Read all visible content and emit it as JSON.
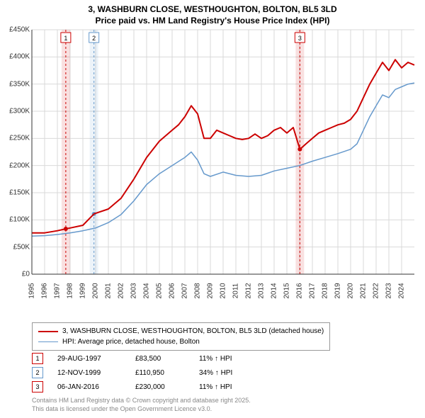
{
  "title_line1": "3, WASHBURN CLOSE, WESTHOUGHTON, BOLTON, BL5 3LD",
  "title_line2": "Price paid vs. HM Land Registry's House Price Index (HPI)",
  "chart": {
    "type": "line",
    "background_color": "#ffffff",
    "grid_color": "#d9d9d9",
    "axis_color": "#333333",
    "x_years": [
      1995,
      1996,
      1997,
      1998,
      1999,
      2000,
      2001,
      2002,
      2003,
      2004,
      2005,
      2006,
      2007,
      2008,
      2009,
      2010,
      2011,
      2012,
      2013,
      2014,
      2015,
      2016,
      2017,
      2018,
      2019,
      2020,
      2021,
      2022,
      2023,
      2024
    ],
    "x_range": [
      1995,
      2025
    ],
    "ylim": [
      0,
      450000
    ],
    "ytick_step": 50000,
    "ytick_labels": [
      "£0",
      "£50K",
      "£100K",
      "£150K",
      "£200K",
      "£250K",
      "£300K",
      "£350K",
      "£400K",
      "£450K"
    ],
    "label_fontsize": 10,
    "series": [
      {
        "name": "price_paid",
        "label": "3, WASHBURN CLOSE, WESTHOUGHTON, BOLTON, BL5 3LD (detached house)",
        "color": "#cc0000",
        "line_width": 2,
        "points": [
          [
            1995,
            76000
          ],
          [
            1996,
            76000
          ],
          [
            1997,
            80000
          ],
          [
            1997.66,
            83500
          ],
          [
            1998,
            85000
          ],
          [
            1999,
            90000
          ],
          [
            1999.87,
            110950
          ],
          [
            2000,
            112000
          ],
          [
            2001,
            120000
          ],
          [
            2002,
            140000
          ],
          [
            2003,
            175000
          ],
          [
            2004,
            215000
          ],
          [
            2005,
            245000
          ],
          [
            2006,
            265000
          ],
          [
            2006.5,
            275000
          ],
          [
            2007,
            290000
          ],
          [
            2007.5,
            310000
          ],
          [
            2008,
            295000
          ],
          [
            2008.5,
            250000
          ],
          [
            2009,
            250000
          ],
          [
            2009.5,
            265000
          ],
          [
            2010,
            260000
          ],
          [
            2010.5,
            255000
          ],
          [
            2011,
            250000
          ],
          [
            2011.5,
            248000
          ],
          [
            2012,
            250000
          ],
          [
            2012.5,
            258000
          ],
          [
            2013,
            250000
          ],
          [
            2013.5,
            255000
          ],
          [
            2014,
            265000
          ],
          [
            2014.5,
            270000
          ],
          [
            2015,
            260000
          ],
          [
            2015.5,
            270000
          ],
          [
            2016.02,
            230000
          ],
          [
            2016.5,
            240000
          ],
          [
            2017,
            250000
          ],
          [
            2017.5,
            260000
          ],
          [
            2018,
            265000
          ],
          [
            2018.5,
            270000
          ],
          [
            2019,
            275000
          ],
          [
            2019.5,
            278000
          ],
          [
            2020,
            285000
          ],
          [
            2020.5,
            300000
          ],
          [
            2021,
            325000
          ],
          [
            2021.5,
            350000
          ],
          [
            2022,
            370000
          ],
          [
            2022.5,
            390000
          ],
          [
            2023,
            375000
          ],
          [
            2023.5,
            395000
          ],
          [
            2024,
            380000
          ],
          [
            2024.5,
            390000
          ],
          [
            2025,
            385000
          ]
        ]
      },
      {
        "name": "hpi",
        "label": "HPI: Average price, detached house, Bolton",
        "color": "#6699cc",
        "line_width": 1.5,
        "points": [
          [
            1995,
            70000
          ],
          [
            1996,
            71000
          ],
          [
            1997,
            73000
          ],
          [
            1998,
            76000
          ],
          [
            1999,
            80000
          ],
          [
            2000,
            85000
          ],
          [
            2001,
            95000
          ],
          [
            2002,
            110000
          ],
          [
            2003,
            135000
          ],
          [
            2004,
            165000
          ],
          [
            2005,
            185000
          ],
          [
            2006,
            200000
          ],
          [
            2007,
            215000
          ],
          [
            2007.5,
            225000
          ],
          [
            2008,
            210000
          ],
          [
            2008.5,
            185000
          ],
          [
            2009,
            180000
          ],
          [
            2010,
            188000
          ],
          [
            2011,
            182000
          ],
          [
            2012,
            180000
          ],
          [
            2013,
            182000
          ],
          [
            2014,
            190000
          ],
          [
            2015,
            195000
          ],
          [
            2016,
            200000
          ],
          [
            2017,
            208000
          ],
          [
            2018,
            215000
          ],
          [
            2019,
            222000
          ],
          [
            2020,
            230000
          ],
          [
            2020.5,
            240000
          ],
          [
            2021,
            265000
          ],
          [
            2021.5,
            290000
          ],
          [
            2022,
            310000
          ],
          [
            2022.5,
            330000
          ],
          [
            2023,
            325000
          ],
          [
            2023.5,
            340000
          ],
          [
            2024,
            345000
          ],
          [
            2024.5,
            350000
          ],
          [
            2025,
            352000
          ]
        ]
      }
    ],
    "events": [
      {
        "n": "1",
        "date_x": 1997.66,
        "color": "#cc0000",
        "band_color": "#cc0000",
        "y": 83500
      },
      {
        "n": "2",
        "date_x": 1999.87,
        "color": "#6699cc",
        "band_color": "#6699cc",
        "y": 110950
      },
      {
        "n": "3",
        "date_x": 2016.02,
        "color": "#cc0000",
        "band_color": "#cc0000",
        "y": 230000
      }
    ]
  },
  "legend": {
    "series1_label": "3, WASHBURN CLOSE, WESTHOUGHTON, BOLTON, BL5 3LD (detached house)",
    "series2_label": "HPI: Average price, detached house, Bolton",
    "series1_color": "#cc0000",
    "series2_color": "#6699cc"
  },
  "sales": [
    {
      "n": "1",
      "date": "29-AUG-1997",
      "price": "£83,500",
      "hpi": "11% ↑ HPI",
      "color": "#cc0000"
    },
    {
      "n": "2",
      "date": "12-NOV-1999",
      "price": "£110,950",
      "hpi": "34% ↑ HPI",
      "color": "#6699cc"
    },
    {
      "n": "3",
      "date": "06-JAN-2016",
      "price": "£230,000",
      "hpi": "11% ↑ HPI",
      "color": "#cc0000"
    }
  ],
  "attribution": {
    "line1": "Contains HM Land Registry data © Crown copyright and database right 2025.",
    "line2": "This data is licensed under the Open Government Licence v3.0."
  }
}
